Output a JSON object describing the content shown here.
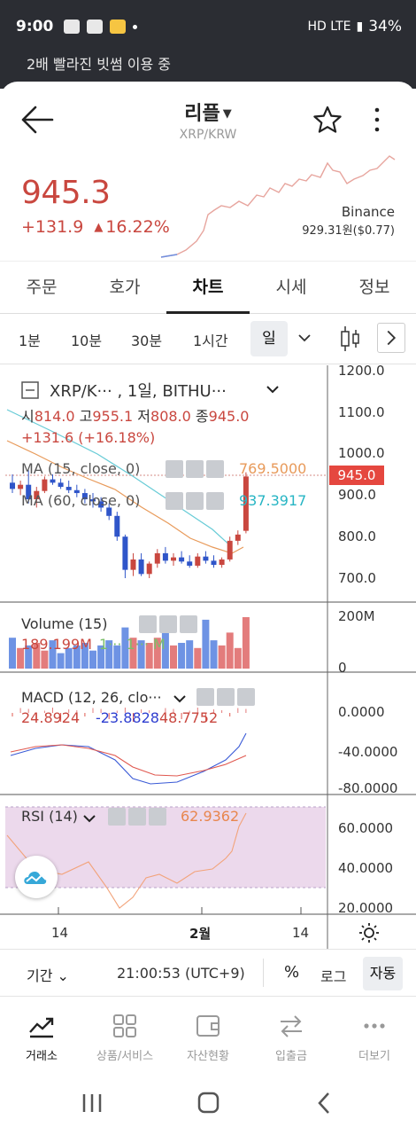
{
  "status_bar": {
    "time": "9:00",
    "network": "HD LTE",
    "battery": "34%"
  },
  "banner": "2배 빨라진 빗썸 이용 중",
  "header": {
    "title": "리플",
    "subtitle": "XRP/KRW"
  },
  "ticker": {
    "price": "945.3",
    "change": "+131.9",
    "change_pct": "16.22%",
    "exchange": "Binance",
    "exchange_price": "929.31원($0.77)"
  },
  "colors": {
    "up": "#c9473f",
    "down": "#2f55c9",
    "ma15": "#e89a5a",
    "ma60": "#27b5c4"
  },
  "tabs": [
    "주문",
    "호가",
    "차트",
    "시세",
    "정보"
  ],
  "active_tab": "차트",
  "intervals": {
    "items": [
      "1분",
      "10분",
      "30분",
      "1시간"
    ],
    "selected": "일"
  },
  "chart": {
    "symbol": "XRP/K··· , 1일, BITHU···",
    "ohlc": {
      "open_label": "시",
      "open": "814.0",
      "high_label": "고",
      "high": "955.1",
      "low_label": "저",
      "low": "808.0",
      "close_label": "종",
      "close": "945.0"
    },
    "change": "+131.6 (+16.18%)",
    "ma15": {
      "label": "MA (15, close, 0)",
      "value": "769.5000"
    },
    "ma60": {
      "label": "MA (60, close, 0)",
      "value": "937.3917"
    },
    "price_axis": [
      "1200.0",
      "1100.0",
      "1000.0",
      "900.0",
      "800.0",
      "700.0"
    ],
    "last_price_tag": "945.0",
    "volume": {
      "label": "Volume (15)",
      "value": "189.199M",
      "value2": "1··· 1··· M",
      "axis": [
        "200M",
        "0"
      ]
    },
    "macd": {
      "label": "MACD (12, 26, clo···",
      "v1": "24.8924",
      "v2": "-23.8828",
      "v3": "48.7752",
      "axis": [
        "0.0000",
        "-40.0000",
        "-80.0000"
      ]
    },
    "rsi": {
      "label": "RSI (14)",
      "value": "62.9362",
      "axis": [
        "60.0000",
        "40.0000",
        "20.0000"
      ]
    },
    "time_axis": [
      "14",
      "2월",
      "14"
    ]
  },
  "toolbar": {
    "period": "기간",
    "time": "21:00:53 (UTC+9)",
    "percent": "%",
    "log": "로그",
    "auto": "자동"
  },
  "bottom_nav": [
    "거래소",
    "상품/서비스",
    "자산현황",
    "입출금",
    "더보기"
  ]
}
